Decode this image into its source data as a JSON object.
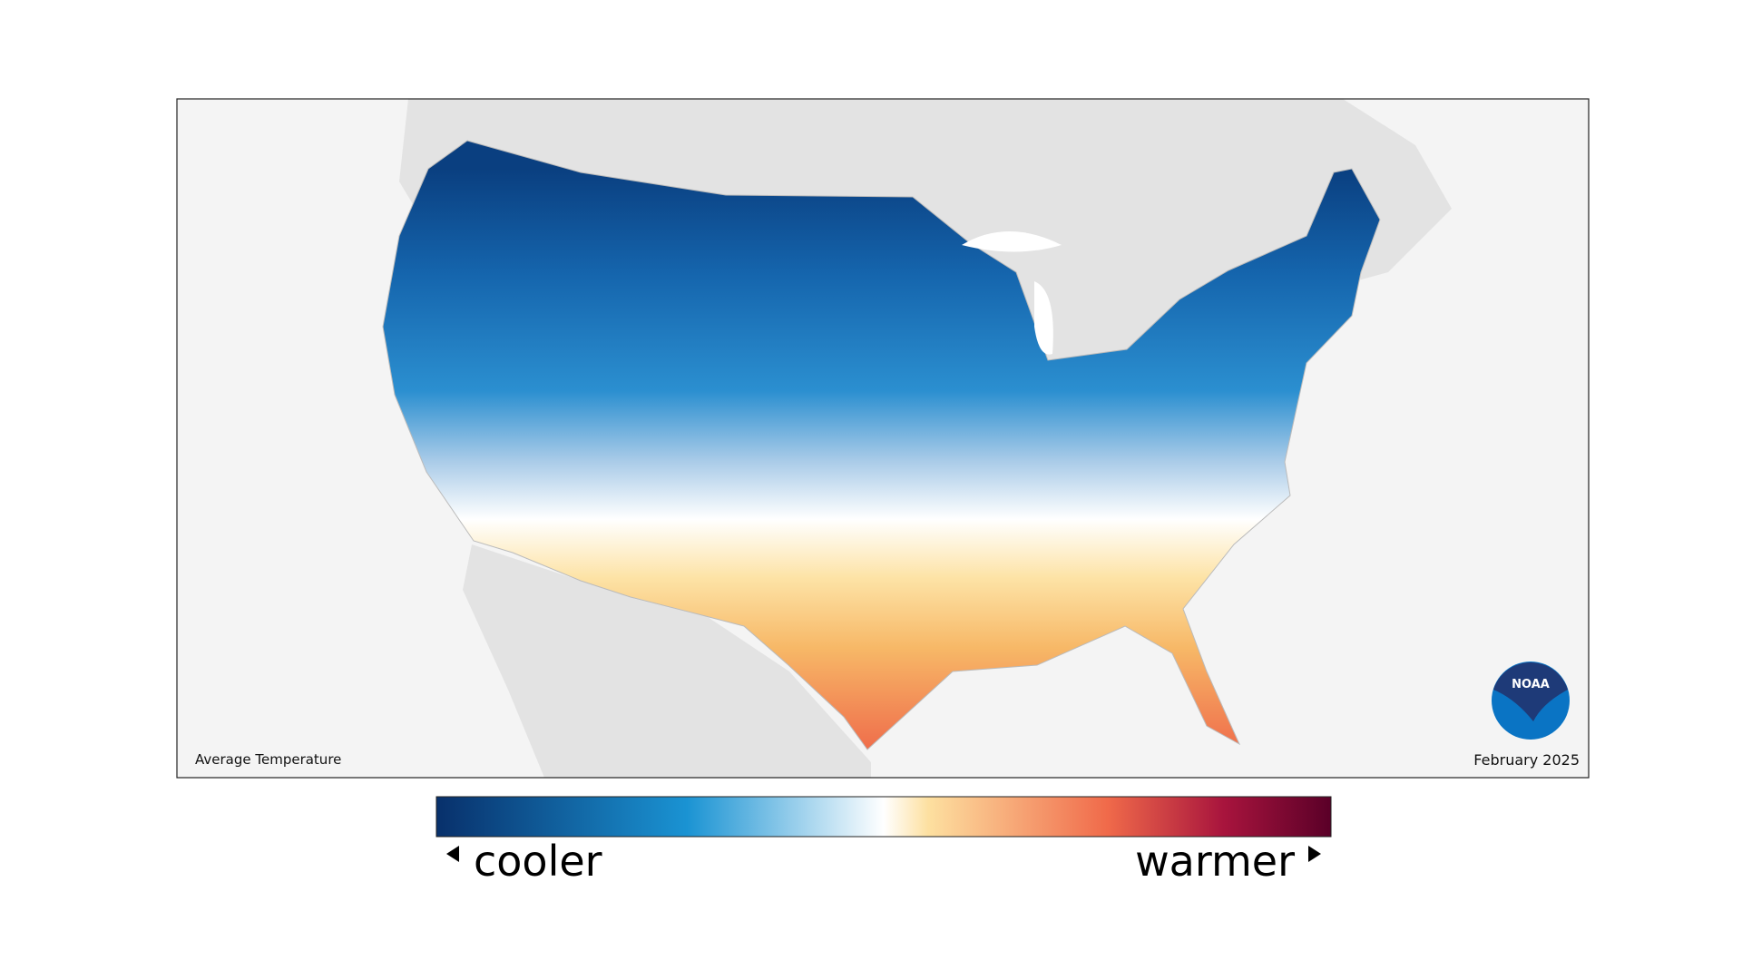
{
  "map": {
    "title": "Average Temperature",
    "date": "February 2025"
  },
  "legend": {
    "low_label": "cooler",
    "high_label": "warmer"
  },
  "logo": {
    "text": "NOAA"
  }
}
